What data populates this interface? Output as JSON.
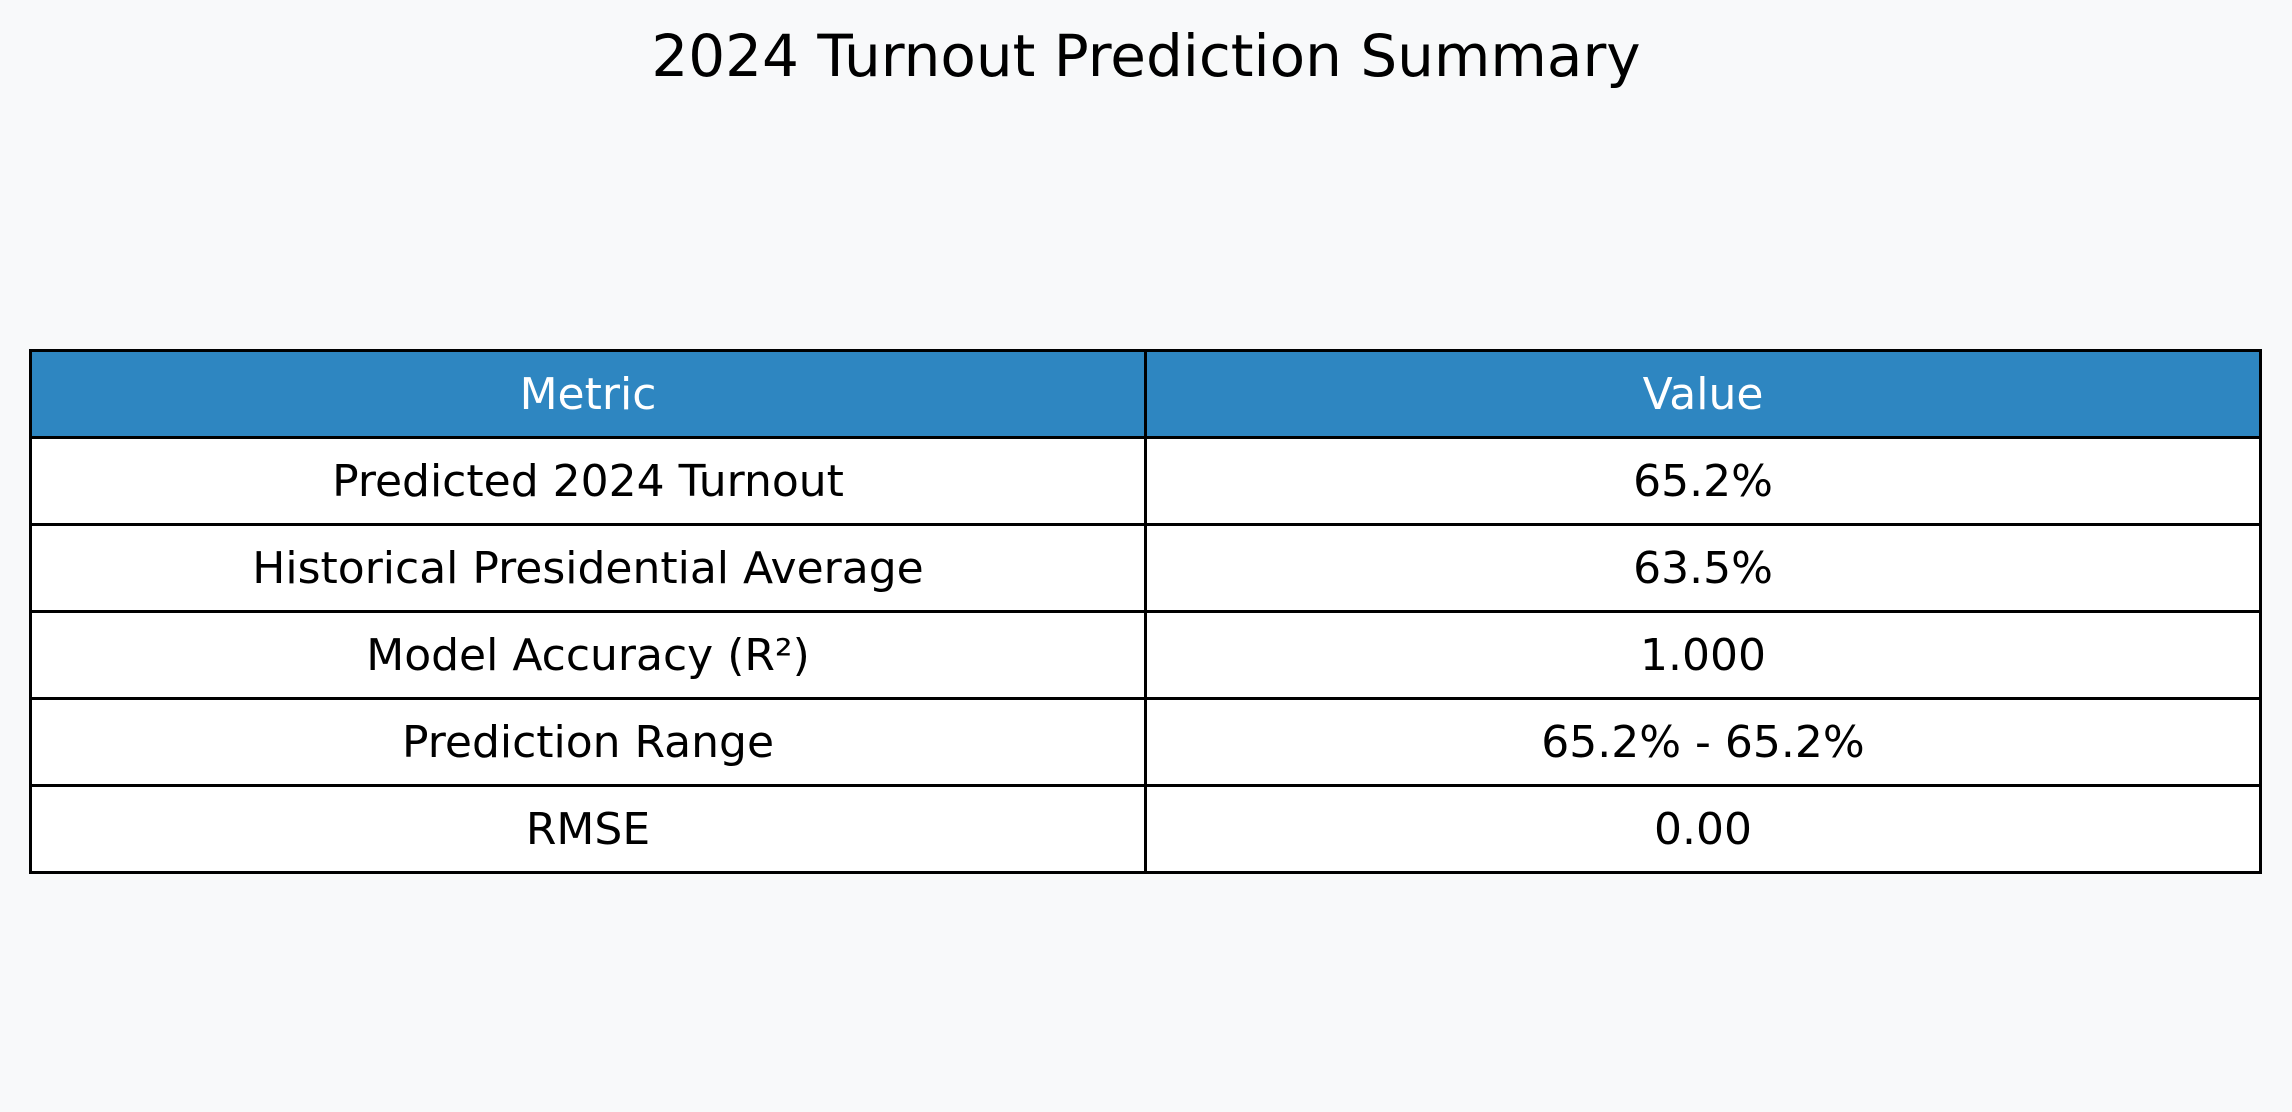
{
  "page": {
    "background": "#f8f9fa"
  },
  "chart_data": {
    "type": "table",
    "title": "2024 Turnout Prediction Summary",
    "header_color": "#2e86c1",
    "header_text_color": "#ffffff",
    "columns": [
      "Metric",
      "Value"
    ],
    "rows": [
      [
        "Predicted 2024 Turnout",
        "65.2%"
      ],
      [
        "Historical Presidential Average",
        "63.5%"
      ],
      [
        "Model Accuracy (R²)",
        "1.000"
      ],
      [
        "Prediction Range",
        "65.2% - 65.2%"
      ],
      [
        "RMSE",
        "0.00"
      ]
    ]
  }
}
